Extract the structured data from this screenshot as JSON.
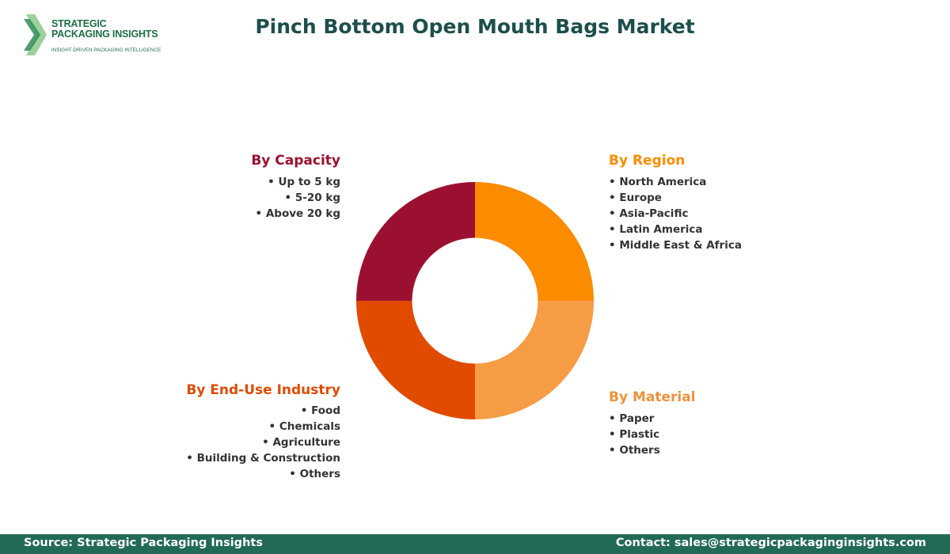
{
  "brand": {
    "line1": "STRATEGIC",
    "line2": "PACKAGING INSIGHTS",
    "tagline": "INSIGHT-DRIVEN PACKAGING INTELLIGENCE",
    "color": "#1d6e45"
  },
  "chart_data": {
    "type": "pie",
    "title": "Pinch Bottom Open Mouth Bags Market",
    "hole": 0.53,
    "slices": [
      {
        "label": "By Region",
        "value": 25,
        "color": "#fb8c00"
      },
      {
        "label": "By Material",
        "value": 25,
        "color": "#f59c45"
      },
      {
        "label": "By End-Use Industry",
        "value": 25,
        "color": "#e04b00"
      },
      {
        "label": "By Capacity",
        "value": 25,
        "color": "#9b1030"
      }
    ]
  },
  "segments": {
    "region": {
      "title": "By Region",
      "items": [
        "North America",
        "Europe",
        "Asia-Pacific",
        "Latin America",
        "Middle East & Africa"
      ]
    },
    "material": {
      "title": "By Material",
      "items": [
        "Paper",
        "Plastic",
        "Others"
      ]
    },
    "enduse": {
      "title": "By End-Use Industry",
      "items": [
        "Food",
        "Chemicals",
        "Agriculture",
        "Building & Construction",
        "Others"
      ]
    },
    "capacity": {
      "title": "By Capacity",
      "items": [
        "Up to 5 kg",
        "5-20 kg",
        "Above 20 kg"
      ]
    }
  },
  "footer": {
    "source": "Source: Strategic Packaging Insights",
    "contact": "Contact: sales@strategicpackaginginsights.com",
    "color": "#226a58"
  }
}
